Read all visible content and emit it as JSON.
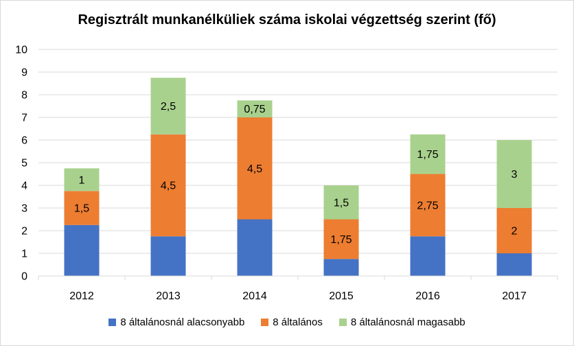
{
  "chart_data": {
    "type": "bar",
    "stacked": true,
    "title": "Regisztrált munkanélküliek száma iskolai végzettség szerint (fő)",
    "categories": [
      "2012",
      "2013",
      "2014",
      "2015",
      "2016",
      "2017"
    ],
    "series": [
      {
        "name": "8 általánosnál alacsonyabb",
        "color": "#4472c4",
        "values": [
          2.25,
          1.75,
          2.5,
          0.75,
          1.75,
          1
        ],
        "data_labels": [
          "",
          "",
          "",
          "",
          "",
          ""
        ]
      },
      {
        "name": "8 általános",
        "color": "#ed7d31",
        "values": [
          1.5,
          4.5,
          4.5,
          1.75,
          2.75,
          2
        ],
        "data_labels": [
          "1,5",
          "4,5",
          "4,5",
          "1,75",
          "2,75",
          "2"
        ]
      },
      {
        "name": "8 általánosnál magasabb",
        "color": "#a9d18e",
        "values": [
          1,
          2.5,
          0.75,
          1.5,
          1.75,
          3
        ],
        "data_labels": [
          "1",
          "2,5",
          "0,75",
          "1,5",
          "1,75",
          "3"
        ]
      }
    ],
    "ylim": [
      0,
      10
    ],
    "yticks": [
      "0",
      "1",
      "2",
      "3",
      "4",
      "5",
      "6",
      "7",
      "8",
      "9",
      "10"
    ],
    "xlabel": "",
    "ylabel": "",
    "grid": true,
    "legend_position": "bottom"
  }
}
